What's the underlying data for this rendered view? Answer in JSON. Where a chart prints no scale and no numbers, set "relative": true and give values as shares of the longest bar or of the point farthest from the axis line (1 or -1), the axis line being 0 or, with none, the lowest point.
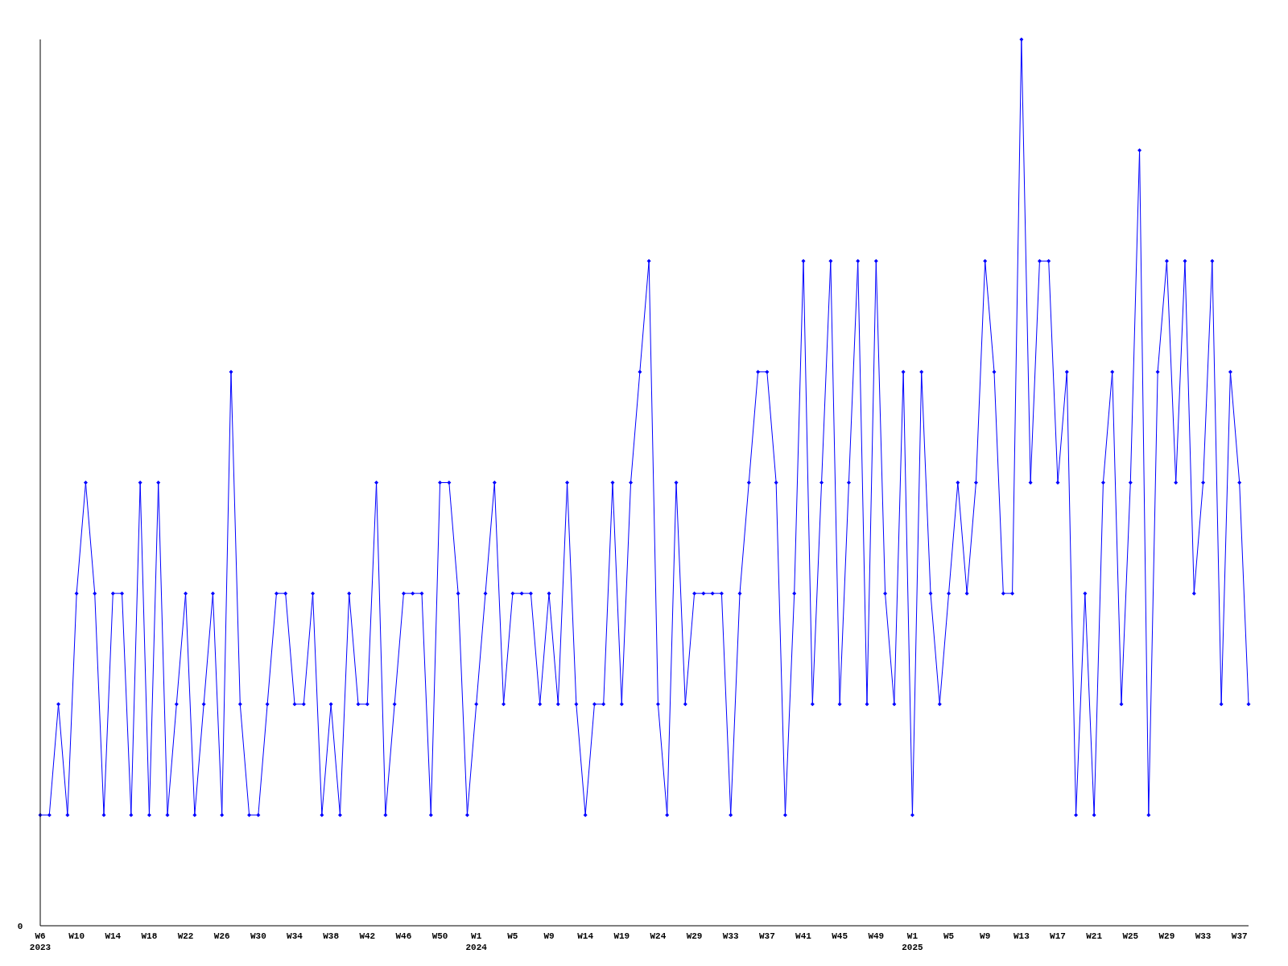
{
  "chart_data": {
    "type": "line",
    "relative": true,
    "marker": "diamond",
    "annotations": [
      "0"
    ],
    "categories": [
      "W6\n2023",
      null,
      null,
      null,
      "W10",
      null,
      null,
      null,
      "W14",
      null,
      null,
      null,
      "W18",
      null,
      null,
      null,
      "W22",
      null,
      null,
      null,
      "W26",
      null,
      null,
      null,
      "W30",
      null,
      null,
      null,
      "W34",
      null,
      null,
      null,
      "W38",
      null,
      null,
      null,
      "W42",
      null,
      null,
      null,
      "W46",
      null,
      null,
      null,
      "W50",
      null,
      null,
      null,
      "W1\n2024",
      null,
      null,
      null,
      "W5",
      null,
      null,
      null,
      "W9",
      null,
      null,
      null,
      "W14",
      null,
      null,
      null,
      "W19",
      null,
      null,
      null,
      "W24",
      null,
      null,
      null,
      "W29",
      null,
      null,
      null,
      "W33",
      null,
      null,
      null,
      "W37",
      null,
      null,
      null,
      "W41",
      null,
      null,
      null,
      "W45",
      null,
      null,
      null,
      "W49",
      null,
      null,
      null,
      "W1\n2025",
      null,
      null,
      null,
      "W5",
      null,
      null,
      null,
      "W9",
      null,
      null,
      null,
      "W13",
      null,
      null,
      null,
      "W17",
      null,
      null,
      null,
      "W21",
      null,
      null,
      null,
      "W25",
      null,
      null,
      null,
      "W29",
      null,
      null,
      null,
      "W33",
      null,
      null,
      null,
      "W37",
      null
    ],
    "series": [
      {
        "color": "#0000ff",
        "values": [
          0.125,
          0.125,
          0.25,
          0.125,
          0.375,
          0.5,
          0.375,
          0.125,
          0.375,
          0.375,
          0.125,
          0.5,
          0.125,
          0.5,
          0.125,
          0.25,
          0.375,
          0.125,
          0.25,
          0.375,
          0.125,
          0.625,
          0.25,
          0.125,
          0.125,
          0.25,
          0.375,
          0.375,
          0.25,
          0.25,
          0.375,
          0.125,
          0.25,
          0.125,
          0.375,
          0.25,
          0.25,
          0.5,
          0.125,
          0.25,
          0.375,
          0.375,
          0.375,
          0.125,
          0.5,
          0.5,
          0.375,
          0.125,
          0.25,
          0.375,
          0.5,
          0.25,
          0.375,
          0.375,
          0.375,
          0.25,
          0.375,
          0.25,
          0.5,
          0.25,
          0.125,
          0.25,
          0.25,
          0.5,
          0.25,
          0.5,
          0.625,
          0.75,
          0.25,
          0.125,
          0.5,
          0.25,
          0.375,
          0.375,
          0.375,
          0.375,
          0.125,
          0.375,
          0.5,
          0.625,
          0.625,
          0.5,
          0.125,
          0.375,
          0.75,
          0.25,
          0.5,
          0.75,
          0.25,
          0.5,
          0.75,
          0.25,
          0.75,
          0.375,
          0.25,
          0.625,
          0.125,
          0.625,
          0.375,
          0.25,
          0.375,
          0.5,
          0.375,
          0.5,
          0.75,
          0.625,
          0.375,
          0.375,
          1,
          0.5,
          0.75,
          0.75,
          0.5,
          0.625,
          0.125,
          0.375,
          0.125,
          0.5,
          0.625,
          0.25,
          0.5,
          0.875,
          0.125,
          0.625,
          0.75,
          0.5,
          0.75,
          0.375,
          0.5,
          0.75,
          0.25,
          0.625,
          0.5,
          0.25
        ]
      }
    ]
  }
}
